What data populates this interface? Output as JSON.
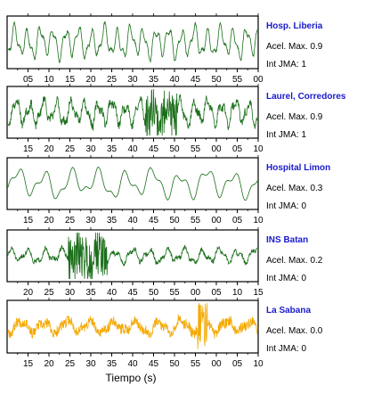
{
  "xlabel": "Tiempo (s)",
  "chart_data": [
    {
      "type": "line",
      "station": "Hosp. Liberia",
      "acel_label": "Acel. Max. 0.9",
      "jma_label": "Int JMA: 1",
      "color": "#1a6e1a",
      "ticks": [
        "05",
        "10",
        "15",
        "20",
        "25",
        "30",
        "35",
        "40",
        "45",
        "50",
        "55",
        "00"
      ],
      "tick_side": "bottom",
      "signal": {
        "amp": 0.85,
        "noise": 0.06,
        "period": 3.1,
        "seed": 11,
        "burst": null
      }
    },
    {
      "type": "line",
      "station": "Laurel, Corredores",
      "acel_label": "Acel. Max. 0.9",
      "jma_label": "Int JMA: 1",
      "color": "#1a6e1a",
      "ticks": [
        "15",
        "20",
        "25",
        "30",
        "35",
        "40",
        "45",
        "50",
        "55",
        "00",
        "05",
        "10"
      ],
      "tick_side": "bottom",
      "signal": {
        "amp": 0.7,
        "noise": 0.18,
        "period": 3.3,
        "seed": 23,
        "burst": [
          0.55,
          0.68
        ]
      }
    },
    {
      "type": "line",
      "station": "Hospital Limon",
      "acel_label": "Acel. Max. 0.3",
      "jma_label": "Int JMA: 0",
      "color": "#1a6e1a",
      "ticks": [
        "15",
        "20",
        "25",
        "30",
        "35",
        "40",
        "45",
        "50",
        "55",
        "00",
        "05",
        "10"
      ],
      "tick_side": "bottom",
      "signal": {
        "amp": 0.8,
        "noise": 0.01,
        "period": 6.5,
        "seed": 37,
        "burst": null
      }
    },
    {
      "type": "line",
      "station": "INS Batan",
      "acel_label": "Acel. Max. 0.2",
      "jma_label": "Int JMA: 0",
      "color": "#1a6e1a",
      "ticks": [
        "20",
        "25",
        "30",
        "35",
        "40",
        "45",
        "50",
        "55",
        "00",
        "05",
        "10",
        "15"
      ],
      "tick_side": "bottom",
      "signal": {
        "amp": 0.4,
        "noise": 0.1,
        "period": 4.2,
        "seed": 51,
        "burst": [
          0.24,
          0.4
        ]
      }
    },
    {
      "type": "line",
      "station": "La Sabana",
      "acel_label": "Acel. Max. 0.0",
      "jma_label": "Int JMA: 0",
      "color": "#f5a800",
      "ticks": [
        "15",
        "20",
        "25",
        "30",
        "35",
        "40",
        "45",
        "50",
        "55",
        "00",
        "05",
        "10"
      ],
      "tick_side": "bottom",
      "signal": {
        "amp": 0.35,
        "noise": 0.22,
        "period": 5.5,
        "seed": 67,
        "burst": [
          0.76,
          0.8
        ]
      }
    }
  ]
}
